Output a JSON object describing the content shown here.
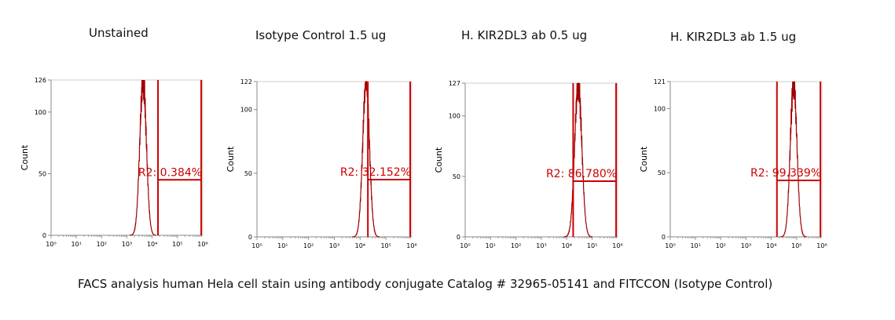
{
  "caption": "FACS analysis human Hela cell stain using antibody conjugate Catalog # 32965-05141 and FITCCON (Isotype Control)",
  "chart_data": [
    {
      "type": "histogram",
      "title": "Unstained",
      "ylabel": "Count",
      "xscale": "log",
      "xlim": [
        1,
        1000000
      ],
      "ylim": [
        0,
        126
      ],
      "yticks": [
        0,
        50,
        100,
        126
      ],
      "xticks": [
        "10⁰",
        "10¹",
        "10²",
        "10³",
        "10⁴",
        "10⁵",
        "10⁶"
      ],
      "peak_log10": 3.64,
      "peak_sd": 0.13,
      "peak_count": 126,
      "gate": {
        "name": "R2",
        "from_log10": 4.23,
        "to_log10": 5.94,
        "level": 45,
        "label": "R2: 0.384%"
      }
    },
    {
      "type": "histogram",
      "title": "Isotype Control 1.5 ug",
      "ylabel": "Count",
      "xscale": "log",
      "xlim": [
        1,
        1000000
      ],
      "ylim": [
        0,
        122
      ],
      "yticks": [
        0,
        50,
        100,
        122
      ],
      "xticks": [
        "10⁰",
        "10¹",
        "10²",
        "10³",
        "10⁴",
        "10⁵",
        "10⁶"
      ],
      "peak_log10": 4.23,
      "peak_sd": 0.13,
      "peak_count": 122,
      "gate": {
        "name": "R2",
        "from_log10": 4.3,
        "to_log10": 5.94,
        "level": 45,
        "label": "R2: 32.152%"
      }
    },
    {
      "type": "histogram",
      "title": "H. KIR2DL3 ab 0.5 ug",
      "ylabel": "Count",
      "xscale": "log",
      "xlim": [
        1,
        1000000
      ],
      "ylim": [
        0,
        127
      ],
      "yticks": [
        0,
        50,
        100,
        127
      ],
      "xticks": [
        "10⁰",
        "10¹",
        "10²",
        "10³",
        "10⁴",
        "10⁵",
        "10⁶"
      ],
      "peak_log10": 4.45,
      "peak_sd": 0.14,
      "peak_count": 127,
      "gate": {
        "name": "R2",
        "from_log10": 4.25,
        "to_log10": 5.94,
        "level": 46,
        "label": "R2: 86.780%"
      }
    },
    {
      "type": "histogram",
      "title": "H. KIR2DL3 ab 1.5 ug",
      "ylabel": "Count",
      "xscale": "log",
      "xlim": [
        1,
        1000000
      ],
      "ylim": [
        0,
        121
      ],
      "yticks": [
        0,
        50,
        100,
        121
      ],
      "xticks": [
        "10⁰",
        "10¹",
        "10²",
        "10³",
        "10⁴",
        "10⁵",
        "10⁶"
      ],
      "peak_log10": 4.88,
      "peak_sd": 0.13,
      "peak_count": 121,
      "gate": {
        "name": "R2",
        "from_log10": 4.22,
        "to_log10": 5.94,
        "level": 44,
        "label": "R2: 99.339%"
      }
    }
  ]
}
